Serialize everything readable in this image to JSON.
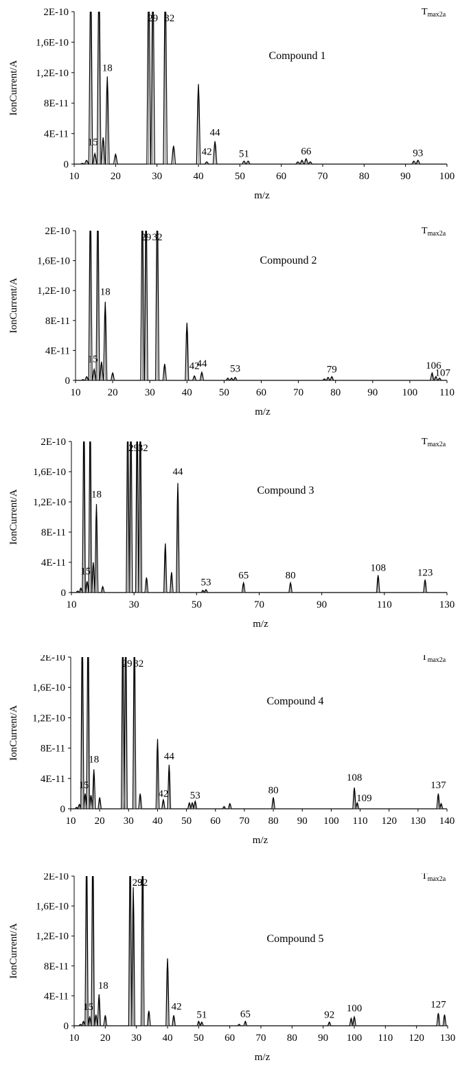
{
  "chart_data": [
    {
      "type": "line",
      "title": "Compound 1",
      "corner_label": {
        "main": "T",
        "sub": "max2a"
      },
      "xlabel": "m/z",
      "ylabel": "IonCurrent/A",
      "xlim": [
        10,
        100
      ],
      "ylim": [
        0,
        2e-10
      ],
      "xticks": [
        "10",
        "20",
        "30",
        "40",
        "50",
        "60",
        "70",
        "80",
        "90",
        "100"
      ],
      "yticks": [
        "0",
        "4E-11",
        "8E-11",
        "1,2E-10",
        "1,6E-10",
        "2E-10"
      ],
      "peaks": [
        {
          "mz": 12,
          "value": 1e-12
        },
        {
          "mz": 13,
          "value": 5e-12
        },
        {
          "mz": 14,
          "value": 2.5e-10
        },
        {
          "mz": 15,
          "value": 1.4e-11
        },
        {
          "mz": 16,
          "value": 2.5e-10
        },
        {
          "mz": 17,
          "value": 3.5e-11
        },
        {
          "mz": 18,
          "value": 1.15e-10
        },
        {
          "mz": 20,
          "value": 1.3e-11
        },
        {
          "mz": 28,
          "value": 2.5e-10
        },
        {
          "mz": 29,
          "value": 2.5e-10
        },
        {
          "mz": 32,
          "value": 2.5e-10
        },
        {
          "mz": 34,
          "value": 2.4e-11
        },
        {
          "mz": 40,
          "value": 1.05e-10
        },
        {
          "mz": 42,
          "value": 3e-12
        },
        {
          "mz": 44,
          "value": 3e-11
        },
        {
          "mz": 51,
          "value": 4e-12
        },
        {
          "mz": 52,
          "value": 4e-12
        },
        {
          "mz": 64,
          "value": 3e-12
        },
        {
          "mz": 65,
          "value": 5e-12
        },
        {
          "mz": 66,
          "value": 7e-12
        },
        {
          "mz": 67,
          "value": 3e-12
        },
        {
          "mz": 92,
          "value": 4e-12
        },
        {
          "mz": 93,
          "value": 5e-12
        }
      ],
      "labels": [
        "15",
        "18",
        "29",
        "32",
        "42",
        "44",
        "51",
        "66",
        "93"
      ]
    },
    {
      "type": "line",
      "title": "Compound 2",
      "corner_label": {
        "main": "T",
        "sub": "max2a"
      },
      "xlabel": "m/z",
      "ylabel": "IonCurrent/A",
      "xlim": [
        10,
        110
      ],
      "ylim": [
        0,
        2e-10
      ],
      "xticks": [
        "10",
        "20",
        "30",
        "40",
        "50",
        "60",
        "70",
        "80",
        "90",
        "100",
        "110"
      ],
      "yticks": [
        "0",
        "4E-11",
        "8E-11",
        "1,2E-10",
        "1,6E-10",
        "2E-10"
      ],
      "peaks": [
        {
          "mz": 12,
          "value": 1e-12
        },
        {
          "mz": 13,
          "value": 5e-12
        },
        {
          "mz": 14,
          "value": 2.5e-10
        },
        {
          "mz": 15,
          "value": 1.5e-11
        },
        {
          "mz": 16,
          "value": 2.5e-10
        },
        {
          "mz": 17,
          "value": 2.5e-11
        },
        {
          "mz": 18,
          "value": 1.05e-10
        },
        {
          "mz": 20,
          "value": 1e-11
        },
        {
          "mz": 28,
          "value": 2.5e-10
        },
        {
          "mz": 29,
          "value": 2.5e-10
        },
        {
          "mz": 32,
          "value": 2.5e-10
        },
        {
          "mz": 34,
          "value": 2.2e-11
        },
        {
          "mz": 40,
          "value": 7.7e-11
        },
        {
          "mz": 42,
          "value": 6e-12
        },
        {
          "mz": 44,
          "value": 1.1e-11
        },
        {
          "mz": 51,
          "value": 3e-12
        },
        {
          "mz": 52,
          "value": 3e-12
        },
        {
          "mz": 53,
          "value": 4e-12
        },
        {
          "mz": 77,
          "value": 2e-12
        },
        {
          "mz": 78,
          "value": 4e-12
        },
        {
          "mz": 79,
          "value": 5e-12
        },
        {
          "mz": 106,
          "value": 1e-11
        },
        {
          "mz": 107,
          "value": 5e-12
        },
        {
          "mz": 108,
          "value": 3e-12
        }
      ],
      "labels": [
        "15",
        "18",
        "29",
        "32",
        "42",
        "44",
        "53",
        "79",
        "106",
        "107"
      ]
    },
    {
      "type": "line",
      "title": "Compound 3",
      "corner_label": {
        "main": "T",
        "sub": "max2a"
      },
      "xlabel": "m/z",
      "ylabel": "IonCurrent/A",
      "xlim": [
        10,
        130
      ],
      "ylim": [
        0,
        2e-10
      ],
      "xticks": [
        "10",
        "30",
        "50",
        "70",
        "90",
        "110",
        "130"
      ],
      "yticks": [
        "0",
        "4E-11",
        "8E-11",
        "1,2E-10",
        "1,6E-10",
        "2E-10"
      ],
      "peaks": [
        {
          "mz": 12,
          "value": 2e-12
        },
        {
          "mz": 13,
          "value": 6e-12
        },
        {
          "mz": 14,
          "value": 2.5e-10
        },
        {
          "mz": 15,
          "value": 1.5e-11
        },
        {
          "mz": 16,
          "value": 2.5e-10
        },
        {
          "mz": 17,
          "value": 4e-11
        },
        {
          "mz": 18,
          "value": 1.17e-10
        },
        {
          "mz": 20,
          "value": 8e-12
        },
        {
          "mz": 28,
          "value": 2.5e-10
        },
        {
          "mz": 29,
          "value": 2.5e-10
        },
        {
          "mz": 31,
          "value": 2.5e-10
        },
        {
          "mz": 32,
          "value": 2.5e-10
        },
        {
          "mz": 34,
          "value": 2e-11
        },
        {
          "mz": 40,
          "value": 6.5e-11
        },
        {
          "mz": 42,
          "value": 2.7e-11
        },
        {
          "mz": 44,
          "value": 1.45e-10
        },
        {
          "mz": 52,
          "value": 3e-12
        },
        {
          "mz": 53,
          "value": 4e-12
        },
        {
          "mz": 65,
          "value": 1.3e-11
        },
        {
          "mz": 80,
          "value": 1.3e-11
        },
        {
          "mz": 108,
          "value": 2.3e-11
        },
        {
          "mz": 123,
          "value": 1.7e-11
        }
      ],
      "labels": [
        "15",
        "18",
        "29",
        "32",
        "44",
        "53",
        "65",
        "80",
        "108",
        "123"
      ]
    },
    {
      "type": "line",
      "title": "Compound 4",
      "corner_label": {
        "main": "T",
        "sub": "max2a"
      },
      "xlabel": "m/z",
      "ylabel": "IonCurrent/A",
      "xlim": [
        10,
        140
      ],
      "ylim": [
        0,
        2e-10
      ],
      "xticks": [
        "10",
        "20",
        "30",
        "40",
        "50",
        "60",
        "70",
        "80",
        "90",
        "100",
        "110",
        "120",
        "130",
        "140"
      ],
      "yticks": [
        "0",
        "4E-11",
        "8E-11",
        "1,2E-10",
        "1,6E-10",
        "2E-10"
      ],
      "peaks": [
        {
          "mz": 12,
          "value": 2e-12
        },
        {
          "mz": 13,
          "value": 6e-12
        },
        {
          "mz": 14,
          "value": 2.5e-10
        },
        {
          "mz": 15,
          "value": 2e-11
        },
        {
          "mz": 16,
          "value": 2.5e-10
        },
        {
          "mz": 17,
          "value": 1.8e-11
        },
        {
          "mz": 18,
          "value": 5.2e-11
        },
        {
          "mz": 20,
          "value": 1.5e-11
        },
        {
          "mz": 28,
          "value": 2.5e-10
        },
        {
          "mz": 29,
          "value": 2.5e-10
        },
        {
          "mz": 32,
          "value": 2.5e-10
        },
        {
          "mz": 34,
          "value": 2e-11
        },
        {
          "mz": 40,
          "value": 9.2e-11
        },
        {
          "mz": 42,
          "value": 1.2e-11
        },
        {
          "mz": 44,
          "value": 5.8e-11
        },
        {
          "mz": 51,
          "value": 8e-12
        },
        {
          "mz": 52,
          "value": 8e-12
        },
        {
          "mz": 53,
          "value": 1e-11
        },
        {
          "mz": 63,
          "value": 3e-12
        },
        {
          "mz": 65,
          "value": 7e-12
        },
        {
          "mz": 80,
          "value": 1.5e-11
        },
        {
          "mz": 108,
          "value": 2.8e-11
        },
        {
          "mz": 109,
          "value": 8e-12
        },
        {
          "mz": 137,
          "value": 2e-11
        },
        {
          "mz": 138,
          "value": 7e-12
        }
      ],
      "labels": [
        "15",
        "18",
        "29",
        "32",
        "42",
        "44",
        "53",
        "80",
        "108",
        "109",
        "137"
      ]
    },
    {
      "type": "line",
      "title": "Compound 5",
      "corner_label": {
        "main": "T",
        "sub": "max2a"
      },
      "xlabel": "m/z",
      "ylabel": "IonCurrent/A",
      "xlim": [
        10,
        130
      ],
      "ylim": [
        0,
        2e-10
      ],
      "xticks": [
        "10",
        "20",
        "30",
        "40",
        "50",
        "60",
        "70",
        "80",
        "90",
        "100",
        "110",
        "120",
        "130"
      ],
      "yticks": [
        "0",
        "4E-11",
        "8E-11",
        "1,2E-10",
        "1,6E-10",
        "2E-10"
      ],
      "peaks": [
        {
          "mz": 12,
          "value": 2e-12
        },
        {
          "mz": 13,
          "value": 6e-12
        },
        {
          "mz": 14,
          "value": 2.5e-10
        },
        {
          "mz": 15,
          "value": 1.2e-11
        },
        {
          "mz": 16,
          "value": 2.5e-10
        },
        {
          "mz": 17,
          "value": 1.5e-11
        },
        {
          "mz": 18,
          "value": 4.2e-11
        },
        {
          "mz": 20,
          "value": 1.4e-11
        },
        {
          "mz": 28,
          "value": 2.5e-10
        },
        {
          "mz": 29,
          "value": 1.85e-10
        },
        {
          "mz": 32,
          "value": 2.5e-10
        },
        {
          "mz": 34,
          "value": 2e-11
        },
        {
          "mz": 40,
          "value": 9e-11
        },
        {
          "mz": 42,
          "value": 1.4e-11
        },
        {
          "mz": 50,
          "value": 6e-12
        },
        {
          "mz": 51,
          "value": 5e-12
        },
        {
          "mz": 63,
          "value": 2e-12
        },
        {
          "mz": 65,
          "value": 6e-12
        },
        {
          "mz": 92,
          "value": 5e-12
        },
        {
          "mz": 99,
          "value": 1e-11
        },
        {
          "mz": 100,
          "value": 1.2e-11
        },
        {
          "mz": 127,
          "value": 1.7e-11
        },
        {
          "mz": 129,
          "value": 1.5e-11
        }
      ],
      "labels": [
        "15",
        "18",
        "29",
        "32",
        "42",
        "51",
        "65",
        "92",
        "100",
        "127"
      ]
    }
  ]
}
